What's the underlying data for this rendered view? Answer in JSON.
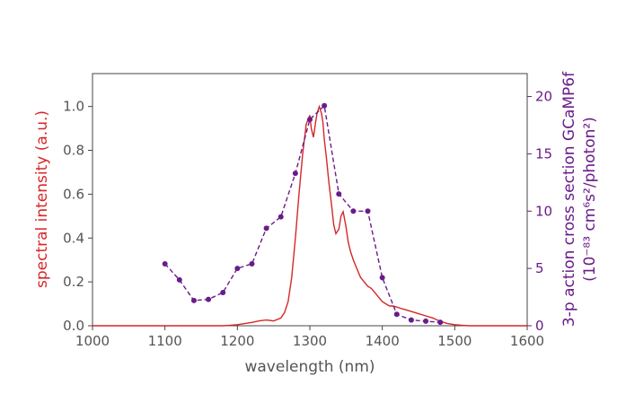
{
  "colors": {
    "spectrum": "#d62728",
    "cross_section": "#6a1b8a",
    "axis": "#444444",
    "tick_text": "#555555"
  },
  "chart_data": {
    "type": "line",
    "xlabel": "wavelength (nm)",
    "ylabel_left": "spectral intensity (a.u.)",
    "ylabel_right_line1": "3-p action cross section GCaMP6f",
    "ylabel_right_line2": "(10⁻⁸³ cm⁶s²/photon²)",
    "xlim": [
      1000,
      1600
    ],
    "ylim_left": [
      0,
      1.15
    ],
    "ylim_right": [
      0,
      22
    ],
    "x_ticks": [
      "1000",
      "1100",
      "1200",
      "1300",
      "1400",
      "1500",
      "1600"
    ],
    "y_ticks_left": [
      "0.0",
      "0.2",
      "0.4",
      "0.6",
      "0.8",
      "1.0"
    ],
    "y_ticks_right": [
      "0",
      "5",
      "10",
      "15",
      "20"
    ],
    "series": [
      {
        "axis": "left",
        "style": "solid",
        "x": [
          1000,
          1180,
          1190,
          1200,
          1210,
          1220,
          1230,
          1240,
          1250,
          1260,
          1265,
          1270,
          1275,
          1280,
          1285,
          1290,
          1295,
          1300,
          1302,
          1305,
          1308,
          1310,
          1313,
          1316,
          1318,
          1320,
          1323,
          1326,
          1330,
          1333,
          1336,
          1340,
          1343,
          1346,
          1350,
          1353,
          1356,
          1360,
          1365,
          1370,
          1375,
          1380,
          1385,
          1390,
          1395,
          1400,
          1405,
          1410,
          1415,
          1420,
          1425,
          1430,
          1440,
          1450,
          1460,
          1470,
          1480,
          1490,
          1500,
          1510,
          1520,
          1600
        ],
        "y": [
          0.0,
          0.0,
          0.002,
          0.005,
          0.01,
          0.015,
          0.022,
          0.026,
          0.022,
          0.035,
          0.06,
          0.11,
          0.22,
          0.4,
          0.6,
          0.78,
          0.92,
          0.96,
          0.9,
          0.86,
          0.93,
          0.97,
          1.0,
          0.97,
          0.93,
          0.85,
          0.76,
          0.66,
          0.55,
          0.46,
          0.42,
          0.44,
          0.5,
          0.52,
          0.45,
          0.38,
          0.34,
          0.3,
          0.26,
          0.22,
          0.2,
          0.18,
          0.17,
          0.15,
          0.13,
          0.11,
          0.1,
          0.09,
          0.09,
          0.085,
          0.08,
          0.075,
          0.065,
          0.055,
          0.045,
          0.035,
          0.02,
          0.01,
          0.005,
          0.002,
          0.0,
          0.0
        ]
      },
      {
        "axis": "right",
        "style": "dashed-markers",
        "x": [
          1100,
          1120,
          1140,
          1160,
          1180,
          1200,
          1220,
          1240,
          1260,
          1280,
          1300,
          1320,
          1340,
          1360,
          1380,
          1400,
          1420,
          1440,
          1460,
          1480
        ],
        "y": [
          5.4,
          4.0,
          2.2,
          2.3,
          2.9,
          5.0,
          5.4,
          8.5,
          9.5,
          13.3,
          18.0,
          19.2,
          11.5,
          10.0,
          10.0,
          4.2,
          1.0,
          0.5,
          0.4,
          0.3
        ]
      }
    ]
  }
}
